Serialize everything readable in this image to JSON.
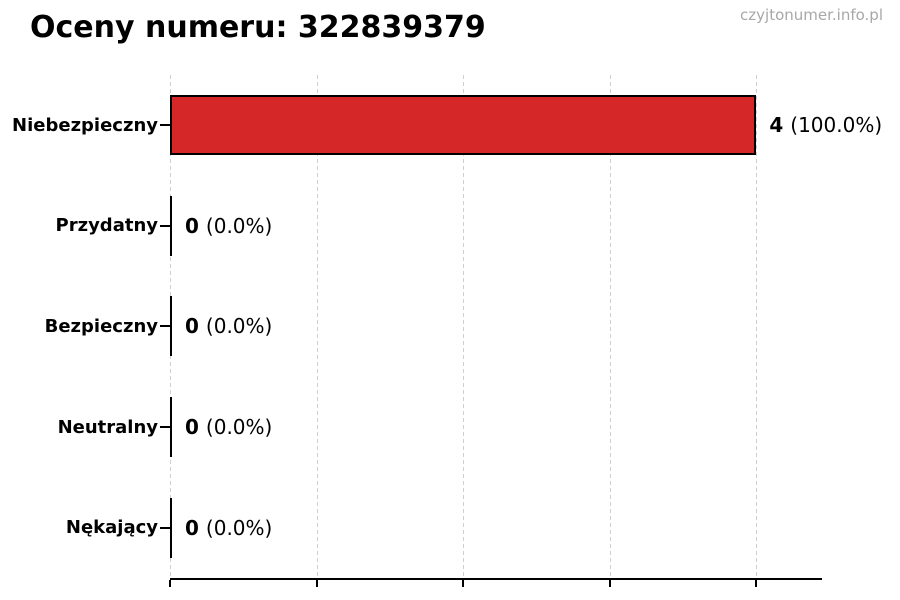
{
  "header": {
    "title": "Oceny numeru: 322839379",
    "watermark": "czyjtonumer.info.pl"
  },
  "colors": {
    "bar_fill": "#d62728",
    "bar_edge": "#000000",
    "zero_bar": "#000000",
    "grid": "#cfcfcf",
    "axis": "#000000",
    "watermark_text": "#a8a8a8",
    "title_text": "#000000"
  },
  "chart_data": {
    "type": "bar",
    "orientation": "horizontal",
    "title": "Oceny numeru: 322839379",
    "categories": [
      "Przydatny",
      "Bezpieczny",
      "Neutralny",
      "Nękający",
      "Niebezpieczny"
    ],
    "values": [
      0,
      0,
      0,
      0,
      4
    ],
    "percentages": [
      0.0,
      0.0,
      0.0,
      0.0,
      100.0
    ],
    "xlim": [
      0,
      4.4
    ],
    "x_ticks": [
      0,
      1,
      2,
      3,
      4
    ],
    "x_tick_labels_visible": false,
    "grid": "vertical-dashed",
    "legend": "none",
    "rows": [
      {
        "label": "Przydatny",
        "count": "0",
        "percent": "(0.0%)"
      },
      {
        "label": "Bezpieczny",
        "count": "0",
        "percent": "(0.0%)"
      },
      {
        "label": "Neutralny",
        "count": "0",
        "percent": "(0.0%)"
      },
      {
        "label": "Nękający",
        "count": "0",
        "percent": "(0.0%)"
      },
      {
        "label": "Niebezpieczny",
        "count": "4",
        "percent": "(100.0%)"
      }
    ]
  }
}
